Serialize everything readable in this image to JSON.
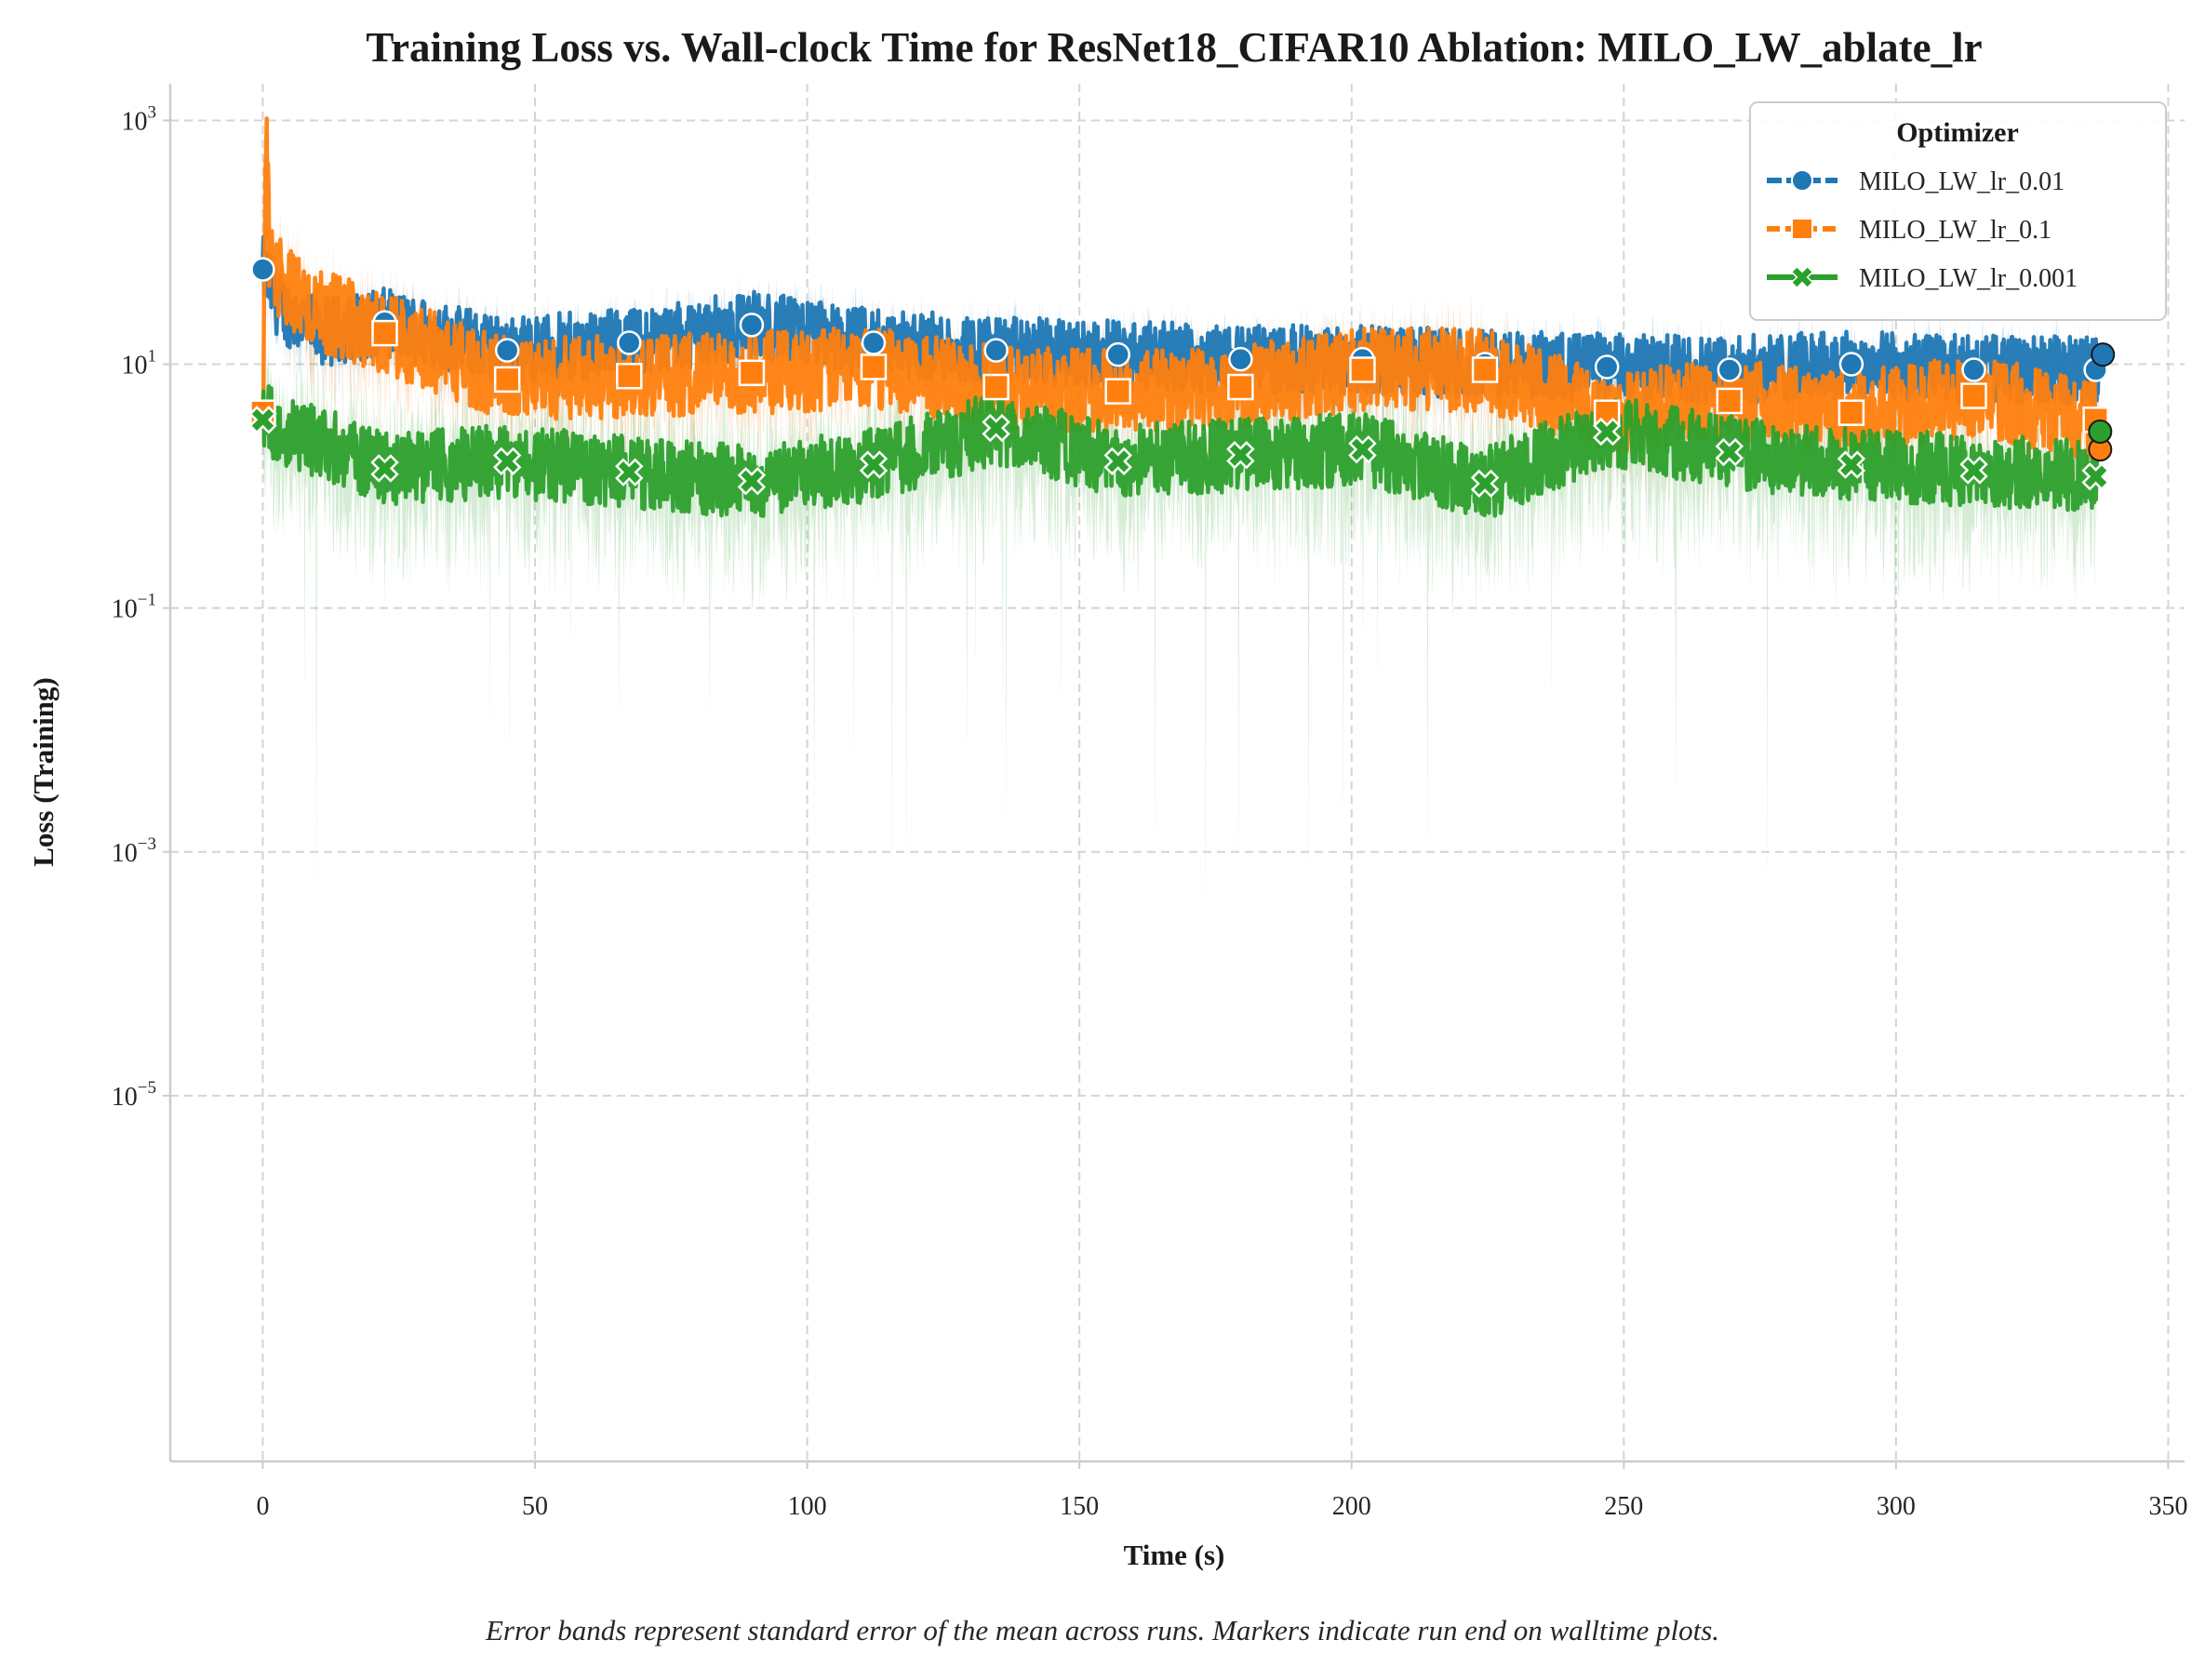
{
  "caption": "Error bands represent standard error of the mean across runs. Markers indicate run end on walltime plots.",
  "chart_data": {
    "type": "line",
    "title": "Training Loss vs. Wall-clock Time for ResNet18_CIFAR10 Ablation: MILO_LW_ablate_lr",
    "xlabel": "Time (s)",
    "ylabel": "Loss (Training)",
    "x_scale": "linear",
    "y_scale": "log",
    "xlim": [
      -17,
      353
    ],
    "ylim": [
      1e-08,
      2000
    ],
    "x_ticks": [
      0,
      50,
      100,
      150,
      200,
      250,
      300,
      350
    ],
    "x_tick_labels": [
      "0",
      "50",
      "100",
      "150",
      "200",
      "250",
      "300",
      "350"
    ],
    "y_ticks": [
      1e-05,
      0.001,
      0.1,
      10,
      1000
    ],
    "y_tick_labels": [
      {
        "base": "10",
        "exp": "−5"
      },
      {
        "base": "10",
        "exp": "−3"
      },
      {
        "base": "10",
        "exp": "−1"
      },
      {
        "base": "10",
        "exp": "1"
      },
      {
        "base": "10",
        "exp": "3"
      }
    ],
    "grid": true,
    "legend": {
      "title": "Optimizer",
      "placement": "top-right"
    },
    "series": [
      {
        "name": "MILO_LW_lr_0.01",
        "color": "#1f77b4",
        "marker": "circle",
        "x": [
          0,
          3,
          10,
          22.4,
          44.9,
          67.3,
          89.8,
          112.2,
          134.7,
          157.1,
          179.6,
          202.0,
          224.5,
          246.9,
          269.4,
          291.8,
          314.3,
          336.7,
          338
        ],
        "y": [
          60,
          30,
          18,
          22,
          13,
          15,
          21,
          15,
          13,
          12,
          11,
          11,
          10,
          9.5,
          9,
          10,
          9,
          9,
          12
        ],
        "end": {
          "x": 338,
          "y": 12
        }
      },
      {
        "name": "MILO_LW_lr_0.1",
        "color": "#ff7f0e",
        "marker": "square",
        "x": [
          0,
          0.6,
          1.2,
          3,
          8,
          22.4,
          44.9,
          67.3,
          89.8,
          112.2,
          134.7,
          157.1,
          179.6,
          202.0,
          224.5,
          246.9,
          269.4,
          291.8,
          314.3,
          336.7,
          337.5
        ],
        "y": [
          4,
          900,
          90,
          50,
          30,
          18,
          7.5,
          8,
          8.5,
          9.5,
          6.5,
          6,
          6.5,
          9,
          9,
          4,
          5,
          4,
          5.5,
          3.5,
          2
        ],
        "end": {
          "x": 337.5,
          "y": 2
        }
      },
      {
        "name": "MILO_LW_lr_0.001",
        "color": "#2ca02c",
        "marker": "x",
        "x": [
          0,
          22.4,
          44.9,
          67.3,
          89.8,
          112.2,
          134.7,
          157.1,
          179.6,
          202.0,
          224.5,
          246.9,
          269.4,
          291.8,
          314.3,
          336.7,
          337.5
        ],
        "y": [
          3.5,
          1.4,
          1.6,
          1.3,
          1.1,
          1.5,
          3,
          1.6,
          1.8,
          2,
          1.05,
          2.8,
          1.9,
          1.5,
          1.35,
          1.2,
          2.8
        ],
        "end": {
          "x": 337.5,
          "y": 2.8
        }
      }
    ]
  }
}
